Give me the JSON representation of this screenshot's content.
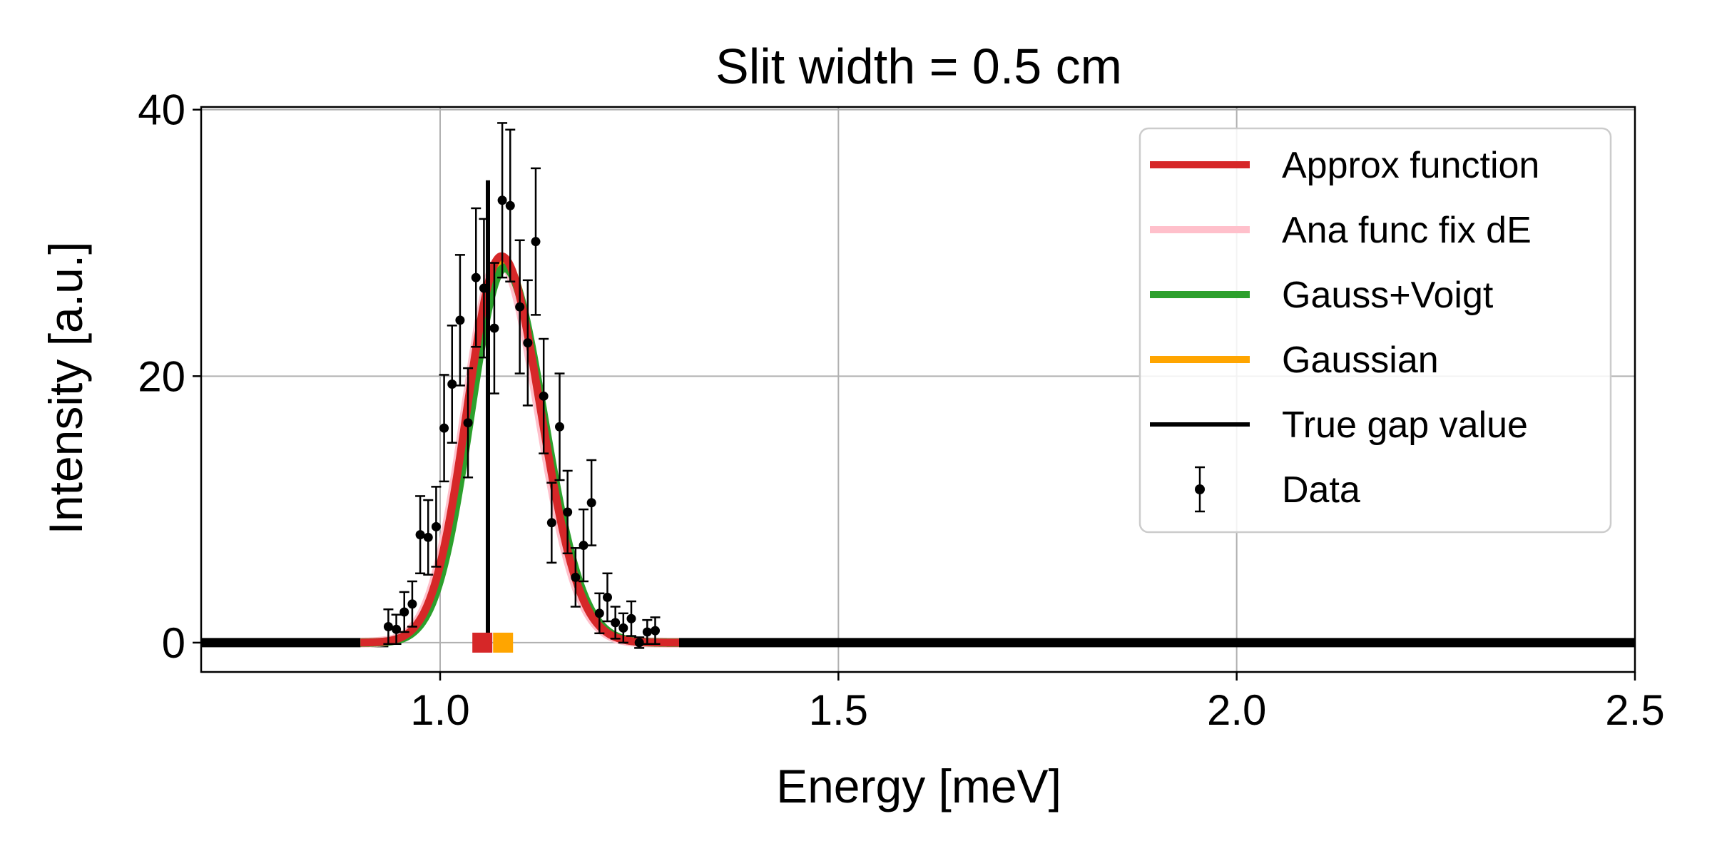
{
  "chart_data": {
    "type": "line",
    "title": "Slit width = 0.5 cm",
    "xlabel": "Energy [meV]",
    "ylabel": "Intensity [a.u.]",
    "xlim": [
      0.7,
      2.5
    ],
    "ylim": [
      -2.2,
      40.2
    ],
    "xticks": [
      1.0,
      1.5,
      2.0,
      2.5
    ],
    "xtick_labels": [
      "1.0",
      "1.5",
      "2.0",
      "2.5"
    ],
    "yticks": [
      0,
      20,
      40
    ],
    "ytick_labels": [
      "0",
      "20",
      "40"
    ],
    "grid": true,
    "legend_position": "top-right",
    "legend": [
      {
        "label": "Approx function",
        "color": "#d62728",
        "kind": "line"
      },
      {
        "label": "Ana func fix dE",
        "color": "#ffc0cb",
        "kind": "line"
      },
      {
        "label": "Gauss+Voigt",
        "color": "#2ca02c",
        "kind": "line"
      },
      {
        "label": "Gaussian",
        "color": "#ffa500",
        "kind": "line"
      },
      {
        "label": "True gap value",
        "color": "#000000",
        "kind": "line"
      },
      {
        "label": "Data",
        "color": "#000000",
        "kind": "errorbar"
      }
    ],
    "curve": {
      "center": 1.077,
      "amplitude": 29.0,
      "sigma_left": 0.043,
      "sigma_right": 0.049,
      "x_start": 0.9,
      "x_end": 1.3
    },
    "true_gap": {
      "x": 1.06,
      "y_top": 34.7
    },
    "markers": [
      {
        "name": "Approx function",
        "x": 1.053,
        "color": "#d62728"
      },
      {
        "name": "Gaussian",
        "x": 1.079,
        "color": "#ffa500"
      }
    ],
    "zero_line": [
      {
        "x_start": 0.7,
        "x_end": 0.935
      },
      {
        "x_start": 1.27,
        "x_end": 2.5
      }
    ],
    "data": [
      {
        "x": 0.935,
        "y": 1.2,
        "err": 1.3
      },
      {
        "x": 0.945,
        "y": 1.0,
        "err": 1.1
      },
      {
        "x": 0.955,
        "y": 2.3,
        "err": 1.5
      },
      {
        "x": 0.965,
        "y": 2.9,
        "err": 1.7
      },
      {
        "x": 0.975,
        "y": 8.1,
        "err": 2.9
      },
      {
        "x": 0.985,
        "y": 7.9,
        "err": 2.8
      },
      {
        "x": 0.995,
        "y": 8.7,
        "err": 3.0
      },
      {
        "x": 1.005,
        "y": 16.1,
        "err": 4.0
      },
      {
        "x": 1.015,
        "y": 19.4,
        "err": 4.4
      },
      {
        "x": 1.025,
        "y": 24.2,
        "err": 4.9
      },
      {
        "x": 1.035,
        "y": 16.5,
        "err": 4.1
      },
      {
        "x": 1.045,
        "y": 27.4,
        "err": 5.2
      },
      {
        "x": 1.055,
        "y": 26.6,
        "err": 5.2
      },
      {
        "x": 1.068,
        "y": 23.6,
        "err": 4.9
      },
      {
        "x": 1.078,
        "y": 33.2,
        "err": 5.8
      },
      {
        "x": 1.088,
        "y": 32.8,
        "err": 5.7
      },
      {
        "x": 1.1,
        "y": 25.2,
        "err": 5.0
      },
      {
        "x": 1.11,
        "y": 22.5,
        "err": 4.7
      },
      {
        "x": 1.12,
        "y": 30.1,
        "err": 5.5
      },
      {
        "x": 1.13,
        "y": 18.5,
        "err": 4.3
      },
      {
        "x": 1.14,
        "y": 9.0,
        "err": 3.0
      },
      {
        "x": 1.15,
        "y": 16.2,
        "err": 4.0
      },
      {
        "x": 1.16,
        "y": 9.8,
        "err": 3.1
      },
      {
        "x": 1.17,
        "y": 4.9,
        "err": 2.2
      },
      {
        "x": 1.18,
        "y": 7.3,
        "err": 2.7
      },
      {
        "x": 1.19,
        "y": 10.5,
        "err": 3.2
      },
      {
        "x": 1.2,
        "y": 2.2,
        "err": 1.5
      },
      {
        "x": 1.21,
        "y": 3.4,
        "err": 1.8
      },
      {
        "x": 1.22,
        "y": 1.5,
        "err": 1.2
      },
      {
        "x": 1.23,
        "y": 1.1,
        "err": 1.1
      },
      {
        "x": 1.24,
        "y": 1.8,
        "err": 1.3
      },
      {
        "x": 1.25,
        "y": 0.0,
        "err": 0.4
      },
      {
        "x": 1.26,
        "y": 0.8,
        "err": 0.9
      },
      {
        "x": 1.27,
        "y": 0.9,
        "err": 1.0
      }
    ]
  }
}
